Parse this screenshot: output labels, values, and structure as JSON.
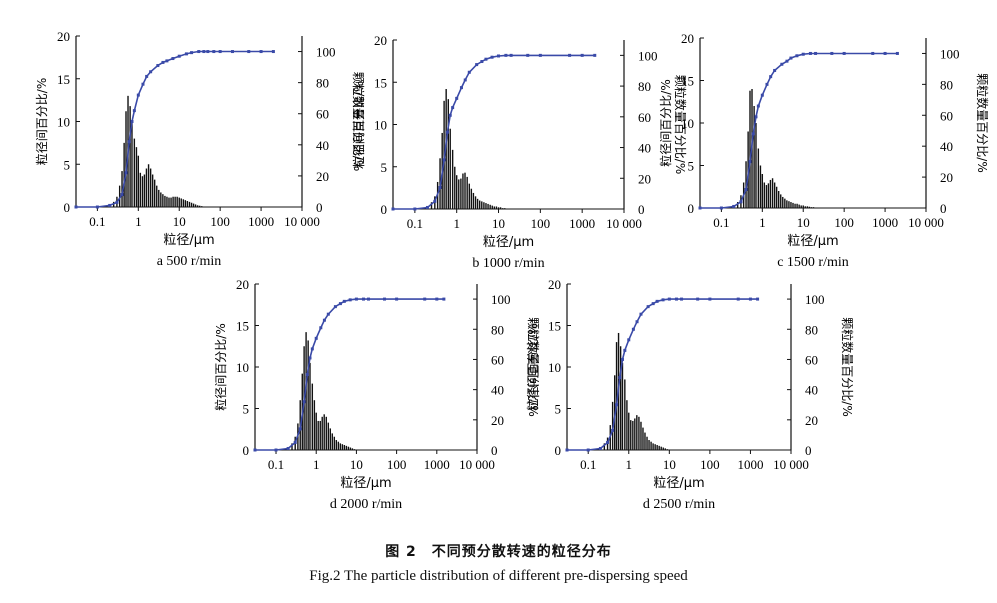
{
  "figure": {
    "caption_cn": "图 2　不同预分散转速的粒径分布",
    "caption_en": "Fig.2 The particle distribution of different pre-dispersing speed"
  },
  "colors": {
    "curve": "#3a4aa8",
    "bars": "#111111",
    "axis": "#111111"
  },
  "chart_data": [
    {
      "type": "bar",
      "caption": "a  500 r/min",
      "xlabel": "粒径/μm",
      "ylabel": "粒径间百分比/%",
      "y2label": "颗粒数量百分比/%",
      "xscale": "log",
      "xlim": [
        0.03,
        10000
      ],
      "xticks": [
        "0.1",
        "1",
        "10",
        "100",
        "1000",
        "10 000"
      ],
      "ylim": [
        0,
        20
      ],
      "yticks": [
        0,
        5,
        10,
        15,
        20
      ],
      "y2lim": [
        0,
        110
      ],
      "y2ticks": [
        0,
        20,
        40,
        60,
        80,
        100
      ],
      "bars": {
        "x": [
          0.2,
          0.25,
          0.3,
          0.35,
          0.4,
          0.45,
          0.5,
          0.56,
          0.63,
          0.7,
          0.8,
          0.9,
          1.0,
          1.12,
          1.26,
          1.41,
          1.58,
          1.78,
          2.0,
          2.24,
          2.51,
          2.82,
          3.16,
          3.55,
          3.98,
          4.47,
          5.01,
          5.62,
          6.31,
          7.08,
          7.94,
          8.91,
          10.0,
          11.2,
          12.6,
          14.1,
          15.8,
          17.8,
          20.0,
          22.4,
          25.1,
          28.2,
          31.6,
          35.5
        ],
        "values": [
          0.3,
          0.6,
          1.2,
          2.5,
          4.2,
          7.5,
          11.2,
          13.0,
          11.8,
          10.0,
          8.0,
          7.0,
          6.0,
          4.0,
          3.6,
          3.8,
          4.5,
          5.0,
          4.5,
          3.8,
          3.2,
          2.5,
          2.0,
          1.7,
          1.5,
          1.3,
          1.2,
          1.1,
          1.1,
          1.2,
          1.2,
          1.2,
          1.1,
          1.0,
          0.9,
          0.8,
          0.7,
          0.6,
          0.5,
          0.4,
          0.3,
          0.2,
          0.15,
          0.1
        ]
      },
      "curve": {
        "x": [
          0.03,
          0.1,
          0.2,
          0.3,
          0.4,
          0.5,
          0.6,
          0.7,
          0.8,
          1.0,
          1.3,
          1.6,
          2,
          3,
          4,
          5,
          7,
          10,
          15,
          20,
          30,
          40,
          50,
          70,
          100,
          200,
          500,
          1000,
          2000
        ],
        "values": [
          0,
          0,
          1,
          3,
          8,
          22,
          42,
          55,
          62,
          72,
          79,
          84,
          87,
          91,
          93,
          94,
          95.5,
          97,
          98.5,
          99.3,
          100,
          100,
          100,
          100,
          100,
          100,
          100,
          100,
          100
        ]
      }
    },
    {
      "type": "bar",
      "caption": "b  1000 r/min",
      "xlabel": "粒径/μm",
      "ylabel": "粒径间百分比/%",
      "y2label": "颗粒数量百分比/%",
      "xscale": "log",
      "xlim": [
        0.03,
        10000
      ],
      "xticks": [
        "0.1",
        "1",
        "10",
        "100",
        "1000",
        "10 000"
      ],
      "ylim": [
        0,
        20
      ],
      "yticks": [
        0,
        5,
        10,
        15,
        20
      ],
      "y2lim": [
        0,
        110
      ],
      "y2ticks": [
        0,
        20,
        40,
        60,
        80,
        100
      ],
      "bars": {
        "x": [
          0.2,
          0.25,
          0.3,
          0.35,
          0.4,
          0.45,
          0.5,
          0.56,
          0.63,
          0.7,
          0.8,
          0.9,
          1.0,
          1.12,
          1.26,
          1.41,
          1.58,
          1.78,
          2.0,
          2.24,
          2.51,
          2.82,
          3.16,
          3.55,
          3.98,
          4.47,
          5.01,
          5.62,
          6.31,
          7.08,
          7.94,
          8.91,
          10.0,
          11.2,
          12.6,
          14.1
        ],
        "values": [
          0.3,
          0.8,
          1.5,
          3.2,
          6.0,
          9.0,
          12.8,
          14.2,
          13.0,
          9.5,
          7.0,
          5.0,
          4.0,
          3.5,
          3.6,
          4.2,
          4.3,
          3.8,
          3.0,
          2.4,
          1.9,
          1.5,
          1.2,
          1.0,
          0.9,
          0.8,
          0.7,
          0.6,
          0.5,
          0.4,
          0.3,
          0.3,
          0.2,
          0.2,
          0.1,
          0.1
        ]
      },
      "curve": {
        "x": [
          0.03,
          0.1,
          0.2,
          0.3,
          0.4,
          0.5,
          0.6,
          0.7,
          0.8,
          1.0,
          1.3,
          1.6,
          2,
          3,
          4,
          5,
          7,
          10,
          15,
          20,
          50,
          100,
          500,
          1000,
          2000
        ],
        "values": [
          0,
          0,
          1,
          5,
          14,
          32,
          50,
          61,
          66,
          72,
          79,
          84,
          89,
          94,
          96,
          97.5,
          98.8,
          99.6,
          100,
          100,
          100,
          100,
          100,
          100,
          100
        ]
      }
    },
    {
      "type": "bar",
      "caption": "c  1500 r/min",
      "xlabel": "粒径/μm",
      "ylabel": "粒径间百分比/%",
      "y2label": "颗粒数量百分比/%",
      "xscale": "log",
      "xlim": [
        0.03,
        10000
      ],
      "xticks": [
        "0.1",
        "1",
        "10",
        "100",
        "1000",
        "10 000"
      ],
      "ylim": [
        0,
        20
      ],
      "yticks": [
        0,
        5,
        10,
        15,
        20
      ],
      "y2lim": [
        0,
        110
      ],
      "y2ticks": [
        0,
        20,
        40,
        60,
        80,
        100
      ],
      "bars": {
        "x": [
          0.2,
          0.25,
          0.3,
          0.35,
          0.4,
          0.45,
          0.5,
          0.56,
          0.63,
          0.7,
          0.8,
          0.9,
          1.0,
          1.12,
          1.26,
          1.41,
          1.58,
          1.78,
          2.0,
          2.24,
          2.51,
          2.82,
          3.16,
          3.55,
          3.98,
          4.47,
          5.01,
          5.62,
          6.31,
          7.08,
          7.94,
          8.91,
          10.0,
          11.2,
          12.6,
          14.1,
          15.8,
          17.8,
          20.0
        ],
        "values": [
          0.3,
          0.7,
          1.5,
          3.0,
          5.5,
          9.0,
          13.8,
          14.0,
          12.0,
          10.0,
          7.0,
          5.0,
          4.0,
          3.0,
          2.7,
          2.9,
          3.3,
          3.5,
          3.0,
          2.5,
          2.0,
          1.6,
          1.3,
          1.1,
          0.9,
          0.8,
          0.7,
          0.6,
          0.5,
          0.5,
          0.4,
          0.3,
          0.3,
          0.2,
          0.2,
          0.15,
          0.1,
          0.1,
          0.05
        ]
      },
      "curve": {
        "x": [
          0.03,
          0.1,
          0.2,
          0.3,
          0.4,
          0.5,
          0.6,
          0.7,
          0.8,
          1.0,
          1.3,
          1.6,
          2,
          3,
          4,
          5,
          7,
          10,
          15,
          20,
          50,
          100,
          500,
          1000,
          2000
        ],
        "values": [
          0,
          0,
          1,
          4,
          12,
          30,
          48,
          59,
          66,
          73,
          80,
          85,
          89,
          93,
          95,
          97,
          98.5,
          99.5,
          100,
          100,
          100,
          100,
          100,
          100,
          100
        ]
      }
    },
    {
      "type": "bar",
      "caption": "d  2000 r/min",
      "xlabel": "粒径/μm",
      "ylabel": "粒径间百分比/%",
      "y2label": "颗粒数量百分比/%",
      "xscale": "log",
      "xlim": [
        0.03,
        10000
      ],
      "xticks": [
        "0.1",
        "1",
        "10",
        "100",
        "1000",
        "10 000"
      ],
      "ylim": [
        0,
        20
      ],
      "yticks": [
        0,
        5,
        10,
        15,
        20
      ],
      "y2lim": [
        0,
        110
      ],
      "y2ticks": [
        0,
        20,
        40,
        60,
        80,
        100
      ],
      "bars": {
        "x": [
          0.2,
          0.25,
          0.3,
          0.35,
          0.4,
          0.45,
          0.5,
          0.56,
          0.63,
          0.7,
          0.8,
          0.9,
          1.0,
          1.12,
          1.26,
          1.41,
          1.58,
          1.78,
          2.0,
          2.24,
          2.51,
          2.82,
          3.16,
          3.55,
          3.98,
          4.47,
          5.01,
          5.62,
          6.31,
          7.08,
          7.94,
          8.91,
          10.0
        ],
        "values": [
          0.3,
          0.8,
          1.6,
          3.2,
          6.0,
          9.2,
          12.5,
          14.2,
          13.2,
          10.5,
          8.0,
          6.0,
          4.5,
          3.5,
          3.5,
          4.0,
          4.3,
          4.0,
          3.3,
          2.6,
          2.0,
          1.6,
          1.2,
          1.0,
          0.8,
          0.7,
          0.6,
          0.5,
          0.4,
          0.3,
          0.2,
          0.1,
          0.05
        ]
      },
      "curve": {
        "x": [
          0.03,
          0.1,
          0.2,
          0.3,
          0.4,
          0.5,
          0.6,
          0.7,
          0.8,
          1.0,
          1.3,
          1.6,
          2,
          3,
          4,
          5,
          7,
          10,
          15,
          20,
          50,
          100,
          500,
          1000,
          1500
        ],
        "values": [
          0,
          0,
          1,
          5,
          14,
          32,
          50,
          61,
          67,
          74,
          81,
          86,
          90,
          95,
          97,
          98.5,
          99.5,
          100,
          100,
          100,
          100,
          100,
          100,
          100,
          100
        ]
      }
    },
    {
      "type": "bar",
      "caption": "d  2500 r/min",
      "xlabel": "粒径/μm",
      "ylabel": "粒径间百分比/%",
      "y2label": "颗粒数量百分比/%",
      "xscale": "log",
      "xlim": [
        0.03,
        10000
      ],
      "xticks": [
        "0.1",
        "1",
        "10",
        "100",
        "1000",
        "10 000"
      ],
      "ylim": [
        0,
        20
      ],
      "yticks": [
        0,
        5,
        10,
        15,
        20
      ],
      "y2lim": [
        0,
        110
      ],
      "y2ticks": [
        0,
        20,
        40,
        60,
        80,
        100
      ],
      "bars": {
        "x": [
          0.2,
          0.25,
          0.3,
          0.35,
          0.4,
          0.45,
          0.5,
          0.56,
          0.63,
          0.7,
          0.8,
          0.9,
          1.0,
          1.12,
          1.26,
          1.41,
          1.58,
          1.78,
          2.0,
          2.24,
          2.51,
          2.82,
          3.16,
          3.55,
          3.98,
          4.47,
          5.01,
          5.62,
          6.31,
          7.08,
          7.94,
          8.91,
          10.0
        ],
        "values": [
          0.3,
          0.8,
          1.5,
          3.0,
          5.8,
          9.0,
          13.0,
          14.1,
          12.5,
          10.5,
          8.5,
          6.0,
          4.5,
          3.6,
          3.5,
          3.8,
          4.2,
          4.0,
          3.4,
          2.7,
          2.1,
          1.6,
          1.2,
          1.0,
          0.8,
          0.7,
          0.6,
          0.5,
          0.4,
          0.3,
          0.2,
          0.1,
          0.05
        ]
      },
      "curve": {
        "x": [
          0.03,
          0.1,
          0.2,
          0.3,
          0.4,
          0.5,
          0.6,
          0.7,
          0.8,
          1.0,
          1.3,
          1.6,
          2,
          3,
          4,
          5,
          7,
          10,
          15,
          20,
          50,
          100,
          500,
          1000,
          1500
        ],
        "values": [
          0,
          0,
          1,
          5,
          13,
          30,
          48,
          60,
          66,
          73,
          80,
          85,
          90,
          95,
          97,
          98.5,
          99.5,
          100,
          100,
          100,
          100,
          100,
          100,
          100,
          100
        ]
      }
    }
  ]
}
